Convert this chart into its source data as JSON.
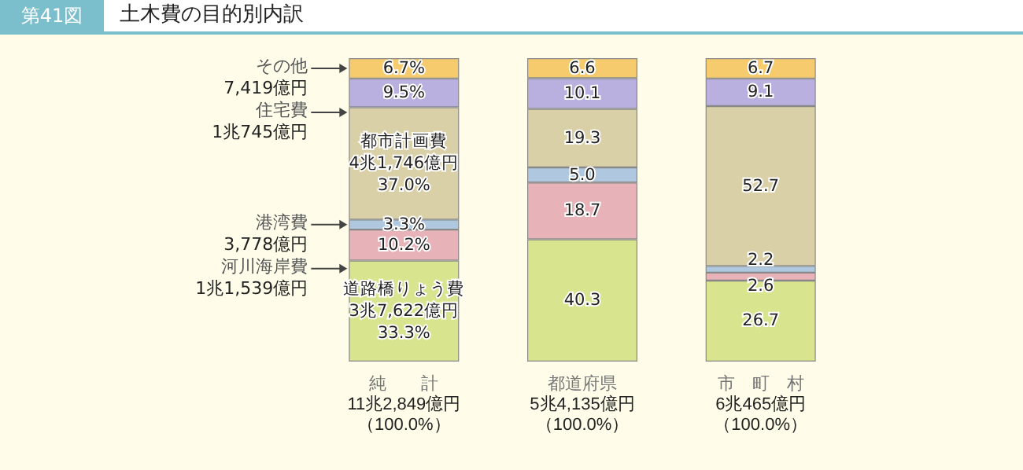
{
  "chart_data": {
    "type": "bar",
    "stacked": true,
    "title": "土木費の目的別内訳",
    "subtitle": "第41図",
    "categories": [
      "純　　計",
      "都道府県",
      "市　町　村"
    ],
    "totals": [
      "11兆2,849億円（100.0%）",
      "5兆4,135億円（100.0%）",
      "6兆465億円（100.0%）"
    ],
    "series": [
      {
        "name": "道路橋りょう費",
        "color": "#d9e48f",
        "values": [
          33.3,
          40.3,
          26.7
        ],
        "value_labels": [
          "33.3%",
          "40.3",
          "26.7"
        ]
      },
      {
        "name": "河川海岸費",
        "color": "#e8b3b8",
        "values": [
          10.2,
          18.7,
          2.6
        ],
        "value_labels": [
          "10.2%",
          "18.7",
          "2.6"
        ]
      },
      {
        "name": "港湾費",
        "color": "#afc8e0",
        "values": [
          3.3,
          5.0,
          2.2
        ],
        "value_labels": [
          "3.3%",
          "5.0",
          "2.2"
        ]
      },
      {
        "name": "都市計画費",
        "color": "#d9d0a8",
        "values": [
          37.0,
          19.3,
          52.7
        ],
        "value_labels": [
          "37.0%",
          "19.3",
          "52.7"
        ]
      },
      {
        "name": "住宅費",
        "color": "#b9b0e0",
        "values": [
          9.5,
          10.1,
          9.1
        ],
        "value_labels": [
          "9.5%",
          "10.1",
          "9.1"
        ]
      },
      {
        "name": "その他",
        "color": "#f5cb6e",
        "values": [
          6.7,
          6.6,
          6.7
        ],
        "value_labels": [
          "6.7%",
          "6.6",
          "6.7"
        ]
      }
    ],
    "annotations": [
      "3兆7,622億円",
      "1兆1,539億円",
      "3,778億円",
      "4兆1,746億円",
      "1兆745億円",
      "7,419億円"
    ],
    "legend": false
  }
}
